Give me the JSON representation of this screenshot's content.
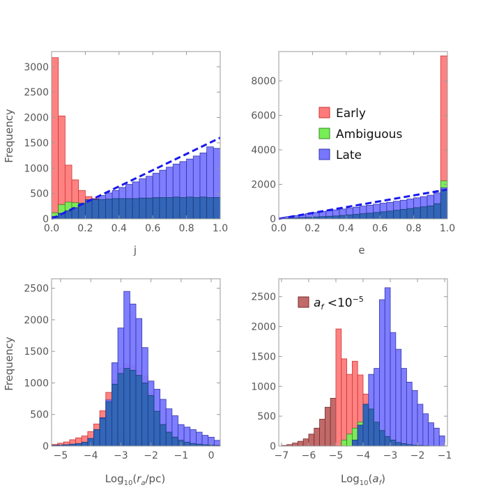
{
  "colors": {
    "early": "#ff7b7b",
    "early_edge": "#cc3333",
    "ambiguous": "#77ee55",
    "ambiguous_edge": "#338822",
    "late": "#7777ff",
    "late_edge": "#3333aa",
    "af_small": "#c06a6a",
    "af_small_edge": "#7a2a2a",
    "fit_line": "#1818ee"
  },
  "chart_data": [
    {
      "id": "j",
      "type": "histogram",
      "xlabel": "j",
      "ylabel": "Frequency",
      "xlim": [
        0,
        1
      ],
      "ylim": [
        0,
        3300
      ],
      "xticks": [
        "0.0",
        "0.2",
        "0.4",
        "0.6",
        "0.8",
        "1.0"
      ],
      "yticks": [
        "0",
        "500",
        "1000",
        "1500",
        "2000",
        "2500",
        "3000"
      ],
      "bins": {
        "start": 0,
        "width": 0.04,
        "count": 25
      },
      "series": [
        {
          "name": "Early",
          "color_key": "early",
          "values": [
            3180,
            2030,
            1060,
            770,
            560,
            440,
            400,
            360,
            330,
            300,
            280,
            260,
            240,
            220,
            210,
            200,
            190,
            180,
            175,
            170,
            165,
            160,
            150,
            145,
            140
          ]
        },
        {
          "name": "Ambiguous",
          "color_key": "ambiguous",
          "values": [
            120,
            280,
            330,
            320,
            310,
            300,
            290,
            280,
            270,
            260,
            250,
            240,
            230,
            220,
            210,
            200,
            190,
            180,
            170,
            160,
            150,
            140,
            130,
            120,
            110
          ]
        },
        {
          "name": "Late",
          "color_key": "late",
          "values": [
            50,
            110,
            160,
            220,
            280,
            330,
            390,
            460,
            510,
            560,
            620,
            680,
            730,
            790,
            840,
            900,
            960,
            1020,
            1080,
            1130,
            1180,
            1240,
            1300,
            1420,
            1390
          ]
        },
        {
          "name": "",
          "color_key": "overlap",
          "values": [
            40,
            100,
            160,
            220,
            300,
            380,
            380,
            380,
            390,
            400,
            400,
            400,
            400,
            410,
            410,
            420,
            420,
            420,
            430,
            420,
            430,
            420,
            430,
            420,
            420
          ]
        }
      ],
      "fit_line": {
        "x": [
          0,
          1
        ],
        "y": [
          0,
          1600
        ]
      }
    },
    {
      "id": "e",
      "type": "histogram",
      "xlabel": "e",
      "ylabel": "",
      "xlim": [
        0,
        1
      ],
      "ylim": [
        0,
        9700
      ],
      "xticks": [
        "0.0",
        "0.2",
        "0.4",
        "0.6",
        "0.8",
        "1.0"
      ],
      "yticks": [
        "0",
        "2000",
        "4000",
        "6000",
        "8000"
      ],
      "bins": {
        "start": 0,
        "width": 0.04,
        "count": 25
      },
      "series": [
        {
          "name": "Early",
          "color_key": "early",
          "values": [
            10,
            20,
            30,
            40,
            50,
            60,
            70,
            80,
            90,
            100,
            110,
            120,
            130,
            140,
            150,
            160,
            170,
            180,
            200,
            220,
            240,
            270,
            300,
            400,
            9450
          ]
        },
        {
          "name": "Ambiguous",
          "color_key": "ambiguous",
          "values": [
            10,
            30,
            50,
            70,
            90,
            110,
            130,
            150,
            170,
            190,
            210,
            230,
            250,
            270,
            290,
            310,
            330,
            350,
            380,
            410,
            440,
            480,
            530,
            700,
            2200
          ]
        },
        {
          "name": "Late",
          "color_key": "late",
          "values": [
            40,
            130,
            190,
            250,
            310,
            370,
            420,
            470,
            520,
            570,
            620,
            680,
            740,
            790,
            850,
            910,
            960,
            1020,
            1080,
            1150,
            1220,
            1290,
            1370,
            1500,
            1800
          ]
        },
        {
          "name": "",
          "color_key": "overlap",
          "values": [
            10,
            30,
            50,
            70,
            90,
            110,
            130,
            150,
            170,
            200,
            230,
            260,
            300,
            330,
            370,
            410,
            450,
            500,
            550,
            600,
            650,
            700,
            750,
            880,
            1700
          ]
        }
      ],
      "fit_line": {
        "x": [
          0,
          1
        ],
        "y": [
          0,
          1700
        ]
      },
      "legend": [
        "Early",
        "Ambiguous",
        "Late"
      ]
    },
    {
      "id": "ra",
      "type": "histogram",
      "xlabel": "Log10(ra/pc)",
      "ylabel": "Frequency",
      "xlim": [
        -5.3,
        0.3
      ],
      "ylim": [
        0,
        2650
      ],
      "xticks": [
        "-5",
        "-4",
        "-3",
        "-2",
        "-1",
        "0"
      ],
      "xtick_values": [
        -5,
        -4,
        -3,
        -2,
        -1,
        0
      ],
      "yticks": [
        "0",
        "500",
        "1000",
        "1500",
        "2000",
        "2500"
      ],
      "bins": {
        "start": -5.3,
        "width": 0.2,
        "count": 28
      },
      "series": [
        {
          "name": "Early",
          "color_key": "early",
          "values": [
            25,
            45,
            65,
            100,
            130,
            160,
            230,
            350,
            560,
            850,
            1050,
            1230,
            1300,
            1270,
            1200,
            1110,
            830,
            560,
            350,
            230,
            150,
            100,
            70,
            50,
            35,
            25,
            15,
            10
          ]
        },
        {
          "name": "Ambiguous",
          "color_key": "ambiguous",
          "values": [
            0,
            0,
            5,
            10,
            15,
            25,
            40,
            60,
            80,
            100,
            120,
            130,
            140,
            140,
            130,
            120,
            100,
            80,
            60,
            40,
            30,
            20,
            15,
            10,
            5,
            5,
            0,
            0
          ]
        },
        {
          "name": "Late",
          "color_key": "late",
          "values": [
            10,
            15,
            20,
            30,
            40,
            60,
            120,
            260,
            450,
            730,
            1320,
            1870,
            2450,
            2250,
            2020,
            1560,
            1030,
            900,
            740,
            590,
            480,
            340,
            300,
            260,
            220,
            170,
            140,
            90
          ]
        },
        {
          "name": "",
          "color_key": "overlap",
          "values": [
            10,
            15,
            20,
            30,
            40,
            60,
            120,
            260,
            440,
            700,
            980,
            1150,
            1230,
            1200,
            1120,
            1000,
            800,
            550,
            340,
            220,
            140,
            90,
            60,
            40,
            30,
            20,
            15,
            10
          ]
        }
      ]
    },
    {
      "id": "af",
      "type": "histogram",
      "xlabel": "Log10(af)",
      "ylabel": "",
      "xlim": [
        -7.1,
        -0.9
      ],
      "ylim": [
        0,
        2800
      ],
      "xticks": [
        "-7",
        "-6",
        "-5",
        "-4",
        "-3",
        "-2",
        "-1"
      ],
      "xtick_values": [
        -7,
        -6,
        -5,
        -4,
        -3,
        -2,
        -1
      ],
      "yticks": [
        "0",
        "500",
        "1000",
        "1500",
        "2000",
        "2500"
      ],
      "bins": {
        "start": -7.0,
        "width": 0.2,
        "count": 30
      },
      "series": [
        {
          "name": "af<10^-5",
          "color_key": "af_small",
          "values": [
            10,
            25,
            50,
            80,
            120,
            200,
            300,
            450,
            650,
            800,
            0,
            0,
            0,
            0,
            0,
            0,
            0,
            0,
            0,
            0,
            0,
            0,
            0,
            0,
            0,
            0,
            0,
            0,
            0,
            0
          ]
        },
        {
          "name": "Early",
          "color_key": "early",
          "values": [
            0,
            0,
            0,
            0,
            0,
            0,
            0,
            0,
            0,
            0,
            1960,
            1460,
            1200,
            1420,
            1190,
            870,
            620,
            400,
            260,
            160,
            100,
            60,
            40,
            25,
            15,
            10,
            5,
            0,
            0,
            0
          ]
        },
        {
          "name": "Ambiguous",
          "color_key": "ambiguous",
          "values": [
            0,
            0,
            0,
            0,
            0,
            0,
            0,
            0,
            0,
            0,
            0,
            100,
            200,
            300,
            400,
            500,
            450,
            350,
            250,
            150,
            100,
            50,
            30,
            20,
            10,
            5,
            0,
            0,
            0,
            0
          ]
        },
        {
          "name": "Late",
          "color_key": "late",
          "values": [
            0,
            0,
            0,
            0,
            0,
            0,
            0,
            0,
            0,
            0,
            0,
            0,
            0,
            100,
            350,
            700,
            1200,
            1300,
            2450,
            2650,
            1900,
            1620,
            1300,
            1070,
            930,
            700,
            540,
            390,
            300,
            170
          ]
        },
        {
          "name": "",
          "color_key": "overlap",
          "values": [
            0,
            0,
            0,
            0,
            0,
            0,
            0,
            0,
            0,
            0,
            0,
            0,
            0,
            100,
            350,
            700,
            620,
            400,
            260,
            160,
            100,
            60,
            40,
            25,
            15,
            10,
            5,
            0,
            0,
            0
          ]
        }
      ],
      "legend": [
        "af<10^-5"
      ]
    }
  ],
  "legends": {
    "e_panel": [
      "Early",
      "Ambiguous",
      "Late"
    ],
    "af_panel_label": "a",
    "af_panel_sub": "f",
    "af_panel_rest": " <10",
    "af_panel_exp": "−5"
  },
  "axis_label_parts": {
    "ra_prefix": "Log",
    "ra_base": "10",
    "ra_open": "(",
    "ra_r": "r",
    "ra_sub": "a",
    "ra_close": "/pc)",
    "af_prefix": "Log",
    "af_base": "10",
    "af_open": "(",
    "af_a": "a",
    "af_sub": "f",
    "af_close": ")"
  }
}
